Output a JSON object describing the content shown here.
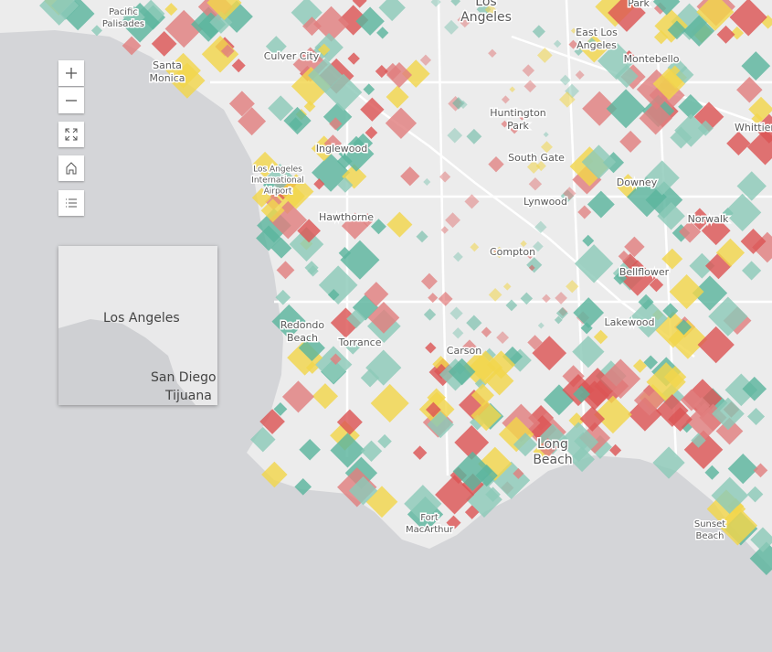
{
  "map": {
    "labels": [
      {
        "lines": [
          "Pacific",
          "Palisades"
        ]
      },
      {
        "lines": [
          "Los",
          "Angeles"
        ]
      },
      {
        "lines": [
          "Park"
        ]
      },
      {
        "lines": [
          "East Los",
          "Angeles"
        ]
      },
      {
        "lines": [
          "Santa",
          "Monica"
        ]
      },
      {
        "lines": [
          "Culver City"
        ]
      },
      {
        "lines": [
          "Montebello"
        ]
      },
      {
        "lines": [
          "Huntington",
          "Park"
        ]
      },
      {
        "lines": [
          "Whittier"
        ]
      },
      {
        "lines": [
          "Inglewood"
        ]
      },
      {
        "lines": [
          "Los Angeles",
          "International",
          "Airport"
        ]
      },
      {
        "lines": [
          "South Gate"
        ]
      },
      {
        "lines": [
          "Downey"
        ]
      },
      {
        "lines": [
          "Lynwood"
        ]
      },
      {
        "lines": [
          "Hawthorne"
        ]
      },
      {
        "lines": [
          "Norwalk"
        ]
      },
      {
        "lines": [
          "Compton"
        ]
      },
      {
        "lines": [
          "Bellflower"
        ]
      },
      {
        "lines": [
          "Redondo",
          "Beach"
        ]
      },
      {
        "lines": [
          "Torrance"
        ]
      },
      {
        "lines": [
          "Lakewood"
        ]
      },
      {
        "lines": [
          "Carson"
        ]
      },
      {
        "lines": [
          "Long",
          "Beach"
        ]
      },
      {
        "lines": [
          "Sunset",
          "Beach"
        ]
      },
      {
        "lines": [
          "Fort",
          "MacArthur"
        ]
      }
    ],
    "overview": {
      "labels": [
        "Los Angeles",
        "San Diego",
        "Tijuana"
      ]
    }
  }
}
